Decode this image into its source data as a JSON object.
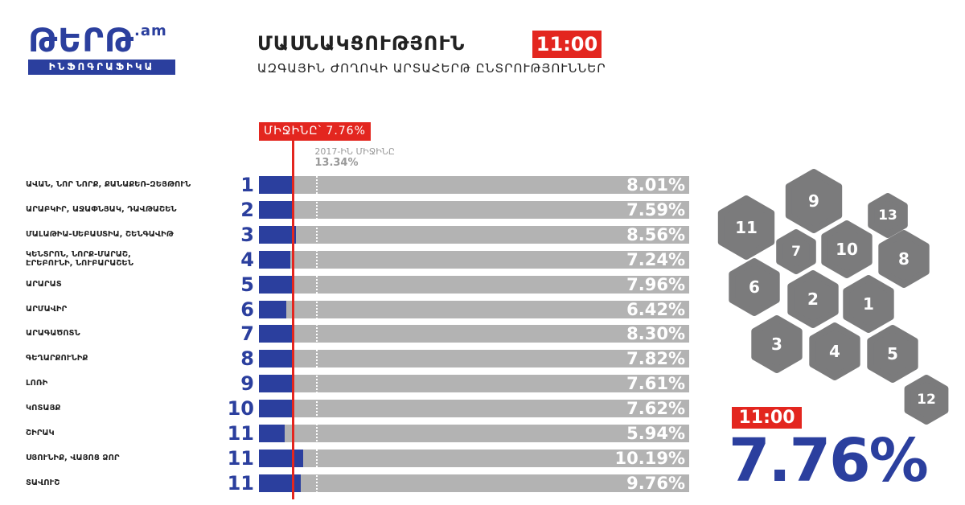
{
  "header": {
    "logo": "ԹԵՐԹ",
    "logo_suffix": ".am",
    "logo_tagline": "ԻՆՖՈԳՐԱՖԻԿԱ"
  },
  "chart_data": {
    "type": "bar",
    "orientation": "horizontal",
    "title": "ՄԱՍՆԱԿՑՈՒԹՅՈՒՆ",
    "title_badge": "11:00",
    "subtitle": "ԱԶԳԱՅԻՆ ԺՈՂՈՎԻ ԱՐՏԱՀԵՐԹ ԸՆՏՐՈՒԹՅՈՒՆՆԵՐ",
    "categories": [
      "ԱՎԱՆ, ՆՈՐ ՆՈՐՔ, ՔԱՆԱՔԵՌ-ԶԵՅԹՈՒՆ",
      "ԱՐԱԲԿԻՐ, ԱՋԱՓՆՅԱԿ, ԴԱՎԹԱՇԵՆ",
      "ՄԱԼԱԹԻԱ-ՍԵԲԱՍՏԻԱ, ՇԵՆԳԱՎԻԹ",
      "ԿԵՆՏՐՈՆ, ՆՈՐՔ-ՄԱՐԱՇ,\nԷՐԵԲՈՒՆԻ, ՆՈՒԲԱՐԱՇԵՆ",
      "ԱՐԱՐԱՏ",
      "ԱՐՄԱՎԻՐ",
      "ԱՐԱԳԱԾՈՏՆ",
      "ԳԵՂԱՐՔՈՒՆԻՔ",
      "ԼՈՌԻ",
      "ԿՈՏԱՅՔ",
      "ՇԻՐԱԿ",
      "ՍՅՈՒՆԻՔ, ՎԱՅՈՑ ՁՈՐ",
      "ՏԱՎՈՒՇ"
    ],
    "districts": [
      "1",
      "2",
      "3",
      "4",
      "5",
      "6",
      "7",
      "8",
      "9",
      "10",
      "11",
      "11",
      "11"
    ],
    "values": [
      8.01,
      7.59,
      8.56,
      7.24,
      7.96,
      6.42,
      8.3,
      7.82,
      7.61,
      7.62,
      5.94,
      10.19,
      9.76
    ],
    "value_labels": [
      "8.01%",
      "7.59%",
      "8.56%",
      "7.24%",
      "7.96%",
      "6.42%",
      "8.30%",
      "7.82%",
      "7.61%",
      "7.62%",
      "5.94%",
      "10.19%",
      "9.76%"
    ],
    "color": "#2b3f9e",
    "track_color": "#b3b3b3",
    "xlim": [
      0,
      100
    ],
    "average": {
      "value": 7.76,
      "label": "ՄԻՋԻՆԸ՝ 7.76%",
      "color": "#e3261f"
    },
    "previous_average": {
      "value": 13.34,
      "title": "2017-ԻՆ ՄԻՋԻՆԸ",
      "label": "13.34%"
    }
  },
  "map": {
    "labels": [
      "9",
      "11",
      "13",
      "7",
      "10",
      "8",
      "6",
      "2",
      "1",
      "3",
      "4",
      "5",
      "12"
    ]
  },
  "summary": {
    "time": "11:00",
    "label": "7.76%"
  }
}
